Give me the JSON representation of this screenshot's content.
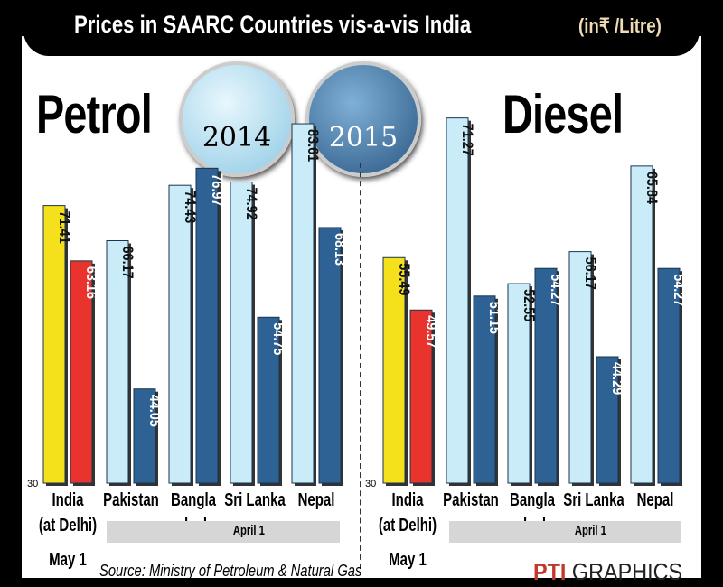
{
  "title": "Prices in SAARC Countries vis-a-vis India",
  "unit": "(in₹ /Litre)",
  "legend": [
    {
      "label": "2014",
      "color": "#bfe6f5"
    },
    {
      "label": "2015",
      "color": "#2f5f8f"
    }
  ],
  "source": "Source: Ministry of Petroleum & Natural Gas",
  "credit": {
    "logo": "PTI",
    "text": "GRAPHICS"
  },
  "date_labels": {
    "india": "May 1",
    "others": "April 1"
  },
  "chart_data": [
    {
      "type": "bar",
      "title": "Petrol",
      "ymin_label": "30",
      "ylim": [
        30,
        88.6
      ],
      "categories": [
        "India (at Delhi)",
        "Pakistan",
        "Bangla -desh",
        "Sri Lanka",
        "Nepal"
      ],
      "series": [
        {
          "name": "2014",
          "values": [
            71.41,
            66.17,
            74.43,
            74.92,
            83.61
          ]
        },
        {
          "name": "2015",
          "values": [
            63.16,
            44.05,
            76.97,
            54.75,
            68.13
          ]
        }
      ]
    },
    {
      "type": "bar",
      "title": "Diesel",
      "ymin_label": "30",
      "ylim": [
        30,
        74.4
      ],
      "categories": [
        "India (at Delhi)",
        "Pakistan",
        "Bangla -desh",
        "Sri Lanka",
        "Nepal"
      ],
      "series": [
        {
          "name": "2014",
          "values": [
            55.49,
            71.27,
            52.55,
            56.17,
            65.84
          ]
        },
        {
          "name": "2015",
          "values": [
            49.57,
            51.15,
            54.27,
            44.29,
            54.27
          ]
        }
      ]
    }
  ],
  "colors": {
    "india_2014": "#f5e01c",
    "india_2015": "#e8342c",
    "other_2014": "#c9ecf8",
    "other_2015": "#2e6294"
  }
}
